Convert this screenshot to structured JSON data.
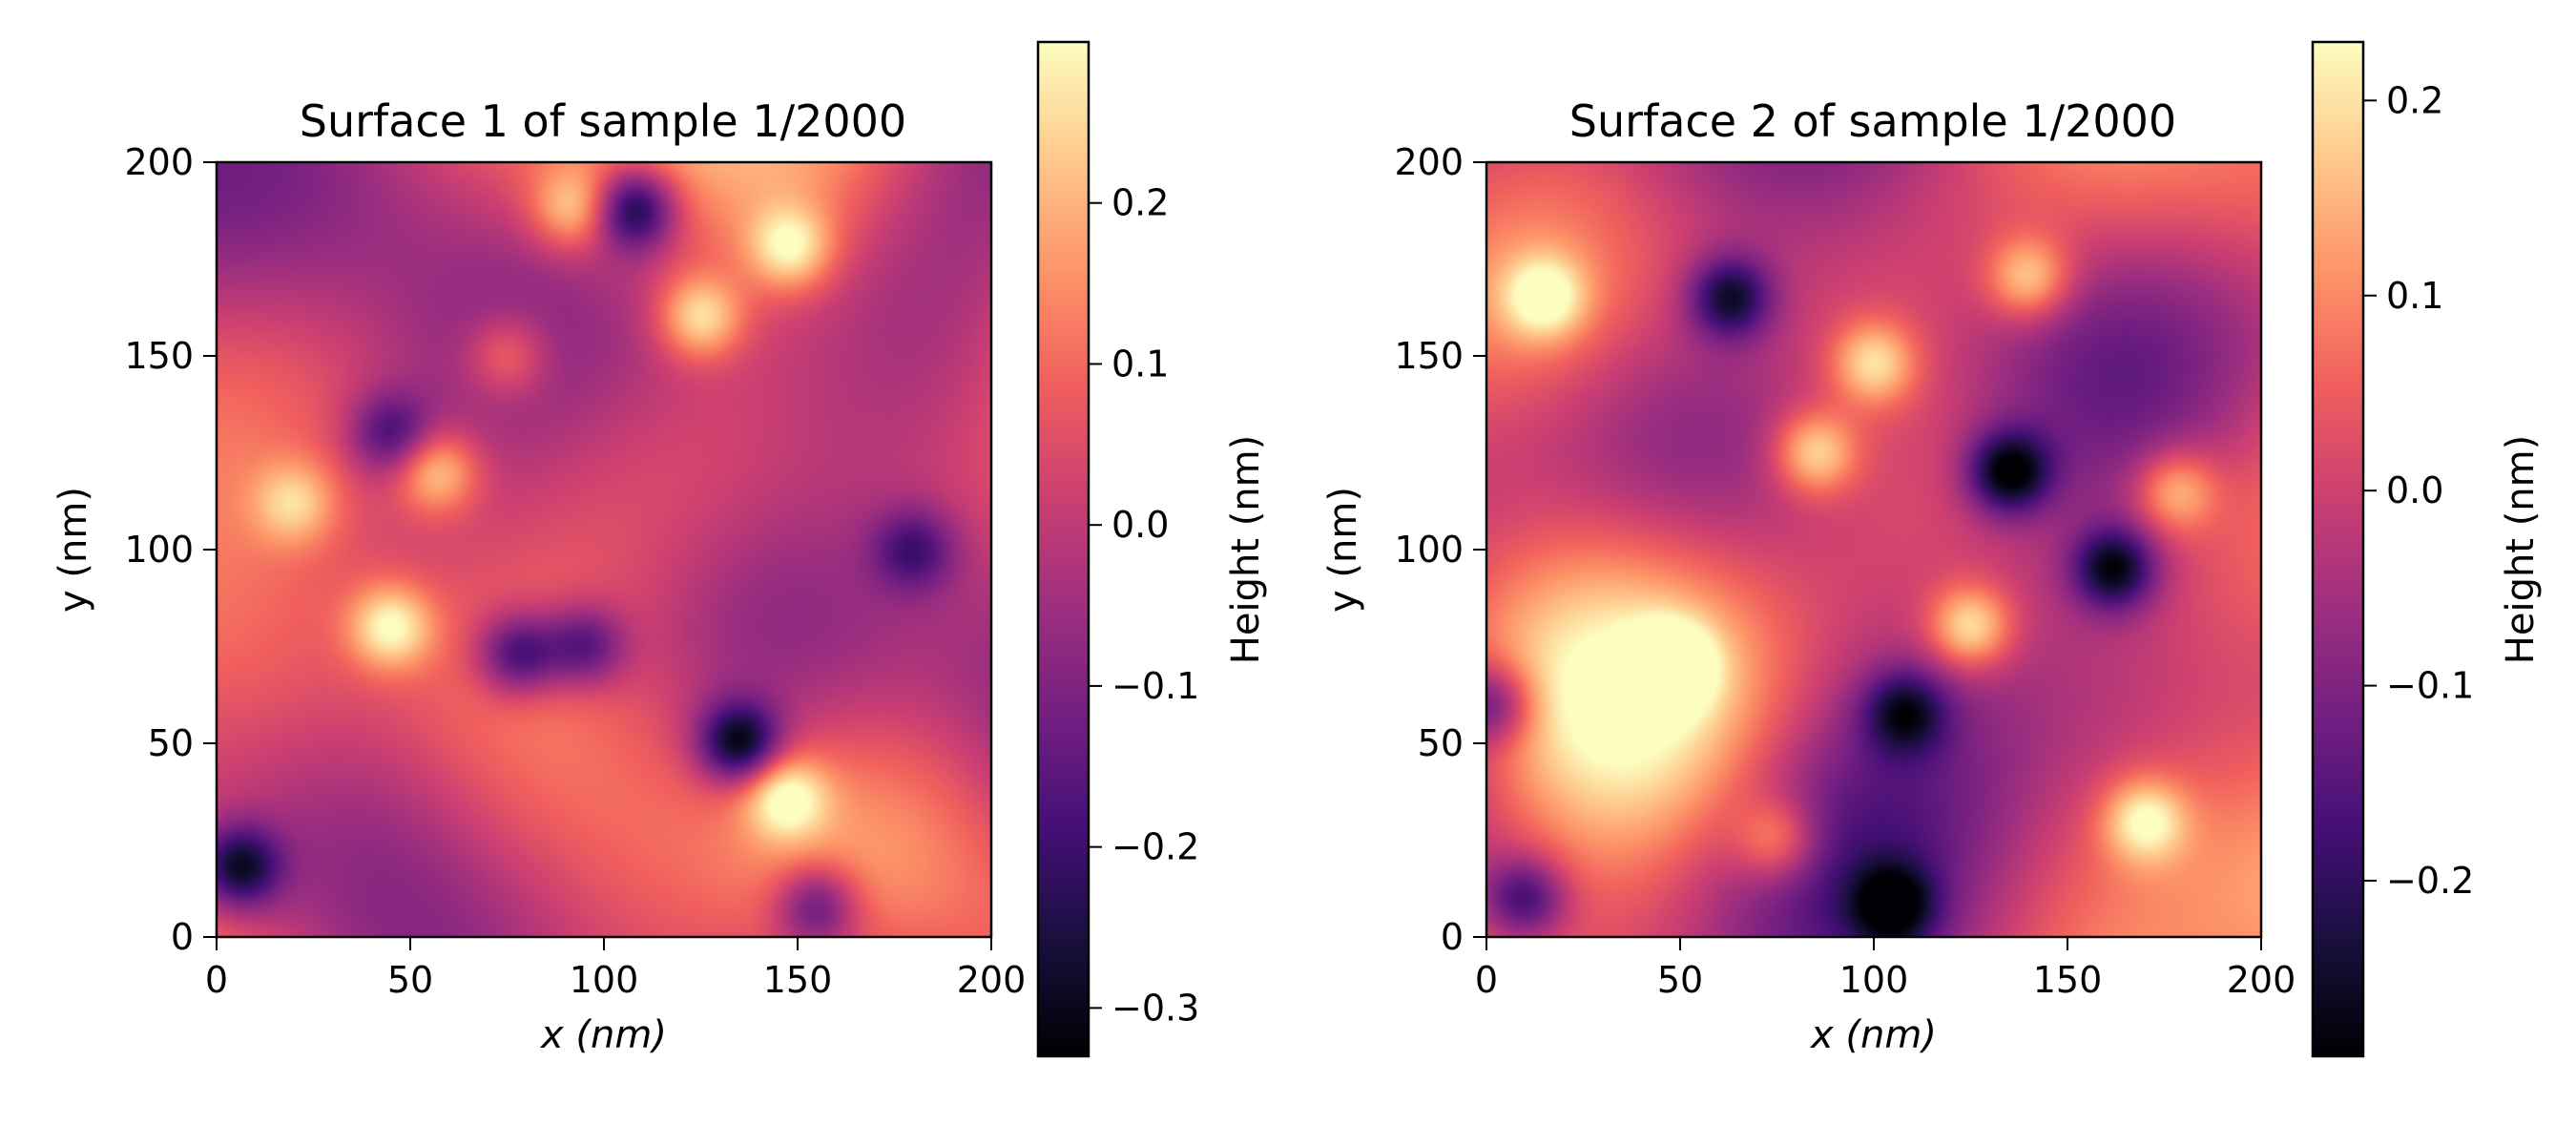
{
  "colormap": {
    "name": "magma",
    "stops": [
      "#000004",
      "#180f3d",
      "#440f76",
      "#721f81",
      "#9e2f7f",
      "#cd4071",
      "#f1605d",
      "#fd9668",
      "#feca8d",
      "#fcfdbf"
    ]
  },
  "chart_data": [
    {
      "type": "heatmap",
      "title": "Surface 1 of sample 1/2000",
      "xlabel": "x (nm)",
      "ylabel": "y (nm)",
      "xlim": [
        0,
        200
      ],
      "ylim": [
        0,
        200
      ],
      "xticks": [
        "0",
        "50",
        "100",
        "150",
        "200"
      ],
      "yticks": [
        "0",
        "50",
        "100",
        "150",
        "200"
      ],
      "colorbar": {
        "label": "Height (nm)",
        "range": [
          -0.33,
          0.3
        ],
        "ticks": [
          {
            "value": 0.2,
            "label": "0.2"
          },
          {
            "value": 0.1,
            "label": "0.1"
          },
          {
            "value": 0.0,
            "label": "0.0"
          },
          {
            "value": -0.1,
            "label": "−0.1"
          },
          {
            "value": -0.2,
            "label": "−0.2"
          },
          {
            "value": -0.3,
            "label": "−0.3"
          }
        ]
      },
      "base_level": 0.03,
      "features": [
        {
          "x": 108,
          "y": 188,
          "h": -0.3
        },
        {
          "x": 135,
          "y": 50,
          "h": -0.32
        },
        {
          "x": 78,
          "y": 73,
          "h": -0.24
        },
        {
          "x": 95,
          "y": 75,
          "h": -0.2
        },
        {
          "x": 6,
          "y": 18,
          "h": -0.27
        },
        {
          "x": 155,
          "y": 8,
          "h": -0.2
        },
        {
          "x": 45,
          "y": 80,
          "h": 0.28
        },
        {
          "x": 125,
          "y": 160,
          "h": 0.27
        },
        {
          "x": 147,
          "y": 36,
          "h": 0.27
        },
        {
          "x": 148,
          "y": 178,
          "h": 0.26
        },
        {
          "x": 57,
          "y": 120,
          "h": 0.25
        },
        {
          "x": 92,
          "y": 188,
          "h": 0.22
        },
        {
          "x": 20,
          "y": 112,
          "h": 0.2
        },
        {
          "x": 75,
          "y": 150,
          "h": 0.18
        },
        {
          "x": 45,
          "y": 130,
          "h": -0.17
        },
        {
          "x": 180,
          "y": 100,
          "h": -0.16
        }
      ]
    },
    {
      "type": "heatmap",
      "title": "Surface 2 of sample 1/2000",
      "xlabel": "x (nm)",
      "ylabel": "y (nm)",
      "xlim": [
        0,
        200
      ],
      "ylim": [
        0,
        200
      ],
      "xticks": [
        "0",
        "50",
        "100",
        "150",
        "200"
      ],
      "yticks": [
        "0",
        "50",
        "100",
        "150",
        "200"
      ],
      "colorbar": {
        "label": "Height (nm)",
        "range": [
          -0.29,
          0.23
        ],
        "ticks": [
          {
            "value": 0.2,
            "label": "0.2"
          },
          {
            "value": 0.1,
            "label": "0.1"
          },
          {
            "value": 0.0,
            "label": "0.0"
          },
          {
            "value": -0.1,
            "label": "−0.1"
          },
          {
            "value": -0.2,
            "label": "−0.2"
          }
        ]
      },
      "base_level": 0.0,
      "features": [
        {
          "x": 135,
          "y": 120,
          "h": -0.28
        },
        {
          "x": 162,
          "y": 95,
          "h": -0.26
        },
        {
          "x": 63,
          "y": 165,
          "h": -0.24
        },
        {
          "x": 108,
          "y": 58,
          "h": -0.2
        },
        {
          "x": 105,
          "y": 8,
          "h": -0.22
        },
        {
          "x": 10,
          "y": 10,
          "h": -0.2
        },
        {
          "x": 2,
          "y": 60,
          "h": -0.19
        },
        {
          "x": 48,
          "y": 70,
          "h": 0.22
        },
        {
          "x": 125,
          "y": 80,
          "h": 0.22
        },
        {
          "x": 85,
          "y": 125,
          "h": 0.2
        },
        {
          "x": 170,
          "y": 30,
          "h": 0.2
        },
        {
          "x": 15,
          "y": 165,
          "h": 0.2
        },
        {
          "x": 100,
          "y": 148,
          "h": 0.19
        },
        {
          "x": 140,
          "y": 170,
          "h": 0.19
        },
        {
          "x": 178,
          "y": 115,
          "h": 0.17
        },
        {
          "x": 75,
          "y": 25,
          "h": 0.15
        }
      ]
    }
  ]
}
